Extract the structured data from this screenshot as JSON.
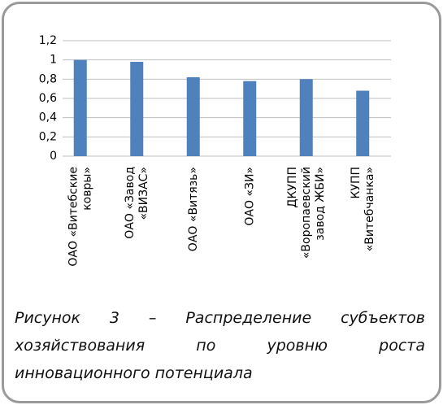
{
  "chart_data": {
    "type": "bar",
    "categories": [
      [
        "ОАО «Витебские",
        "ковры»"
      ],
      [
        "ОАО «Завод",
        "«ВИЗАС»"
      ],
      [
        "ОАО «Витязь»"
      ],
      [
        "ОАО «ЗИ»"
      ],
      [
        "ДКУПП",
        "«Воропаевский",
        "завод ЖБИ»"
      ],
      [
        "КУПП",
        "«Витебчанка»"
      ]
    ],
    "values": [
      1.0,
      0.98,
      0.82,
      0.78,
      0.8,
      0.68
    ],
    "color": "#4f81bd",
    "ylim": [
      0,
      1.2
    ],
    "yticks": [
      0,
      {
        "value": 0.2,
        "label": "0,2"
      },
      {
        "value": 0.4,
        "label": "0,4"
      },
      {
        "value": 0.6,
        "label": "0,6"
      },
      {
        "value": 0.8,
        "label": "0,8"
      },
      1,
      {
        "value": 1.2,
        "label": "1,2"
      }
    ],
    "grid": true
  },
  "caption": "Рисунок 3 – Распределение субъектов хозяйствования по уровню роста инновационного потенциала"
}
